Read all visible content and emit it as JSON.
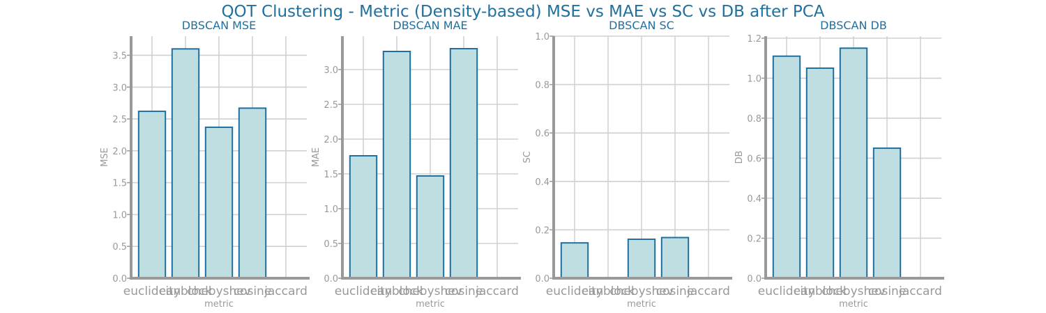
{
  "figure": {
    "title": "QOT Clustering - Metric (Density-based) MSE vs MAE vs SC vs DB after PCA",
    "colors": {
      "bar_fill": "#bedee2",
      "bar_edge": "#1f6f9f",
      "title": "#1f6f9f",
      "axis": "#999999",
      "grid": "#d0d0d0",
      "tick_text": "#999999"
    }
  },
  "chart_data": [
    {
      "type": "bar",
      "title": "DBSCAN MSE",
      "xlabel": "metric",
      "ylabel": "MSE",
      "categories": [
        "euclidean",
        "cityblock",
        "chebyshev",
        "cosine",
        "jaccard"
      ],
      "values": [
        2.62,
        3.6,
        2.37,
        2.67,
        null
      ],
      "ylim": [
        0,
        3.8
      ],
      "yticks": [
        0.0,
        0.5,
        1.0,
        1.5,
        2.0,
        2.5,
        3.0,
        3.5
      ],
      "ytick_labels": [
        "0.0",
        "0.5",
        "1.0",
        "1.5",
        "2.0",
        "2.5",
        "3.0",
        "3.5"
      ],
      "grid": true
    },
    {
      "type": "bar",
      "title": "DBSCAN MAE",
      "xlabel": "metric",
      "ylabel": "MAE",
      "categories": [
        "euclidean",
        "cityblock",
        "chebyshev",
        "cosine",
        "jaccard"
      ],
      "values": [
        1.76,
        3.26,
        1.47,
        3.3,
        null
      ],
      "ylim": [
        0,
        3.48
      ],
      "yticks": [
        0.0,
        0.5,
        1.0,
        1.5,
        2.0,
        2.5,
        3.0
      ],
      "ytick_labels": [
        "0.0",
        "0.5",
        "1.0",
        "1.5",
        "2.0",
        "2.5",
        "3.0"
      ],
      "grid": true
    },
    {
      "type": "bar",
      "title": "DBSCAN SC",
      "xlabel": "metric",
      "ylabel": "SC",
      "categories": [
        "euclidean",
        "cityblock",
        "chebyshev",
        "cosine",
        "jaccard"
      ],
      "values": [
        0.146,
        null,
        0.161,
        0.168,
        null
      ],
      "ylim": [
        0,
        1.0
      ],
      "yticks": [
        0.0,
        0.2,
        0.4,
        0.6,
        0.8,
        1.0
      ],
      "ytick_labels": [
        "0.0",
        "0.2",
        "0.4",
        "0.6",
        "0.8",
        "1.0"
      ],
      "grid": true
    },
    {
      "type": "bar",
      "title": "DBSCAN DB",
      "xlabel": "metric",
      "ylabel": "DB",
      "categories": [
        "euclidean",
        "cityblock",
        "chebyshev",
        "cosine",
        "jaccard"
      ],
      "values": [
        1.11,
        1.05,
        1.15,
        0.65,
        null
      ],
      "ylim": [
        0,
        1.21
      ],
      "yticks": [
        0.0,
        0.2,
        0.4,
        0.6,
        0.8,
        1.0,
        1.2
      ],
      "ytick_labels": [
        "0.0",
        "0.2",
        "0.4",
        "0.6",
        "0.8",
        "1.0",
        "1.2"
      ],
      "grid": true
    }
  ]
}
